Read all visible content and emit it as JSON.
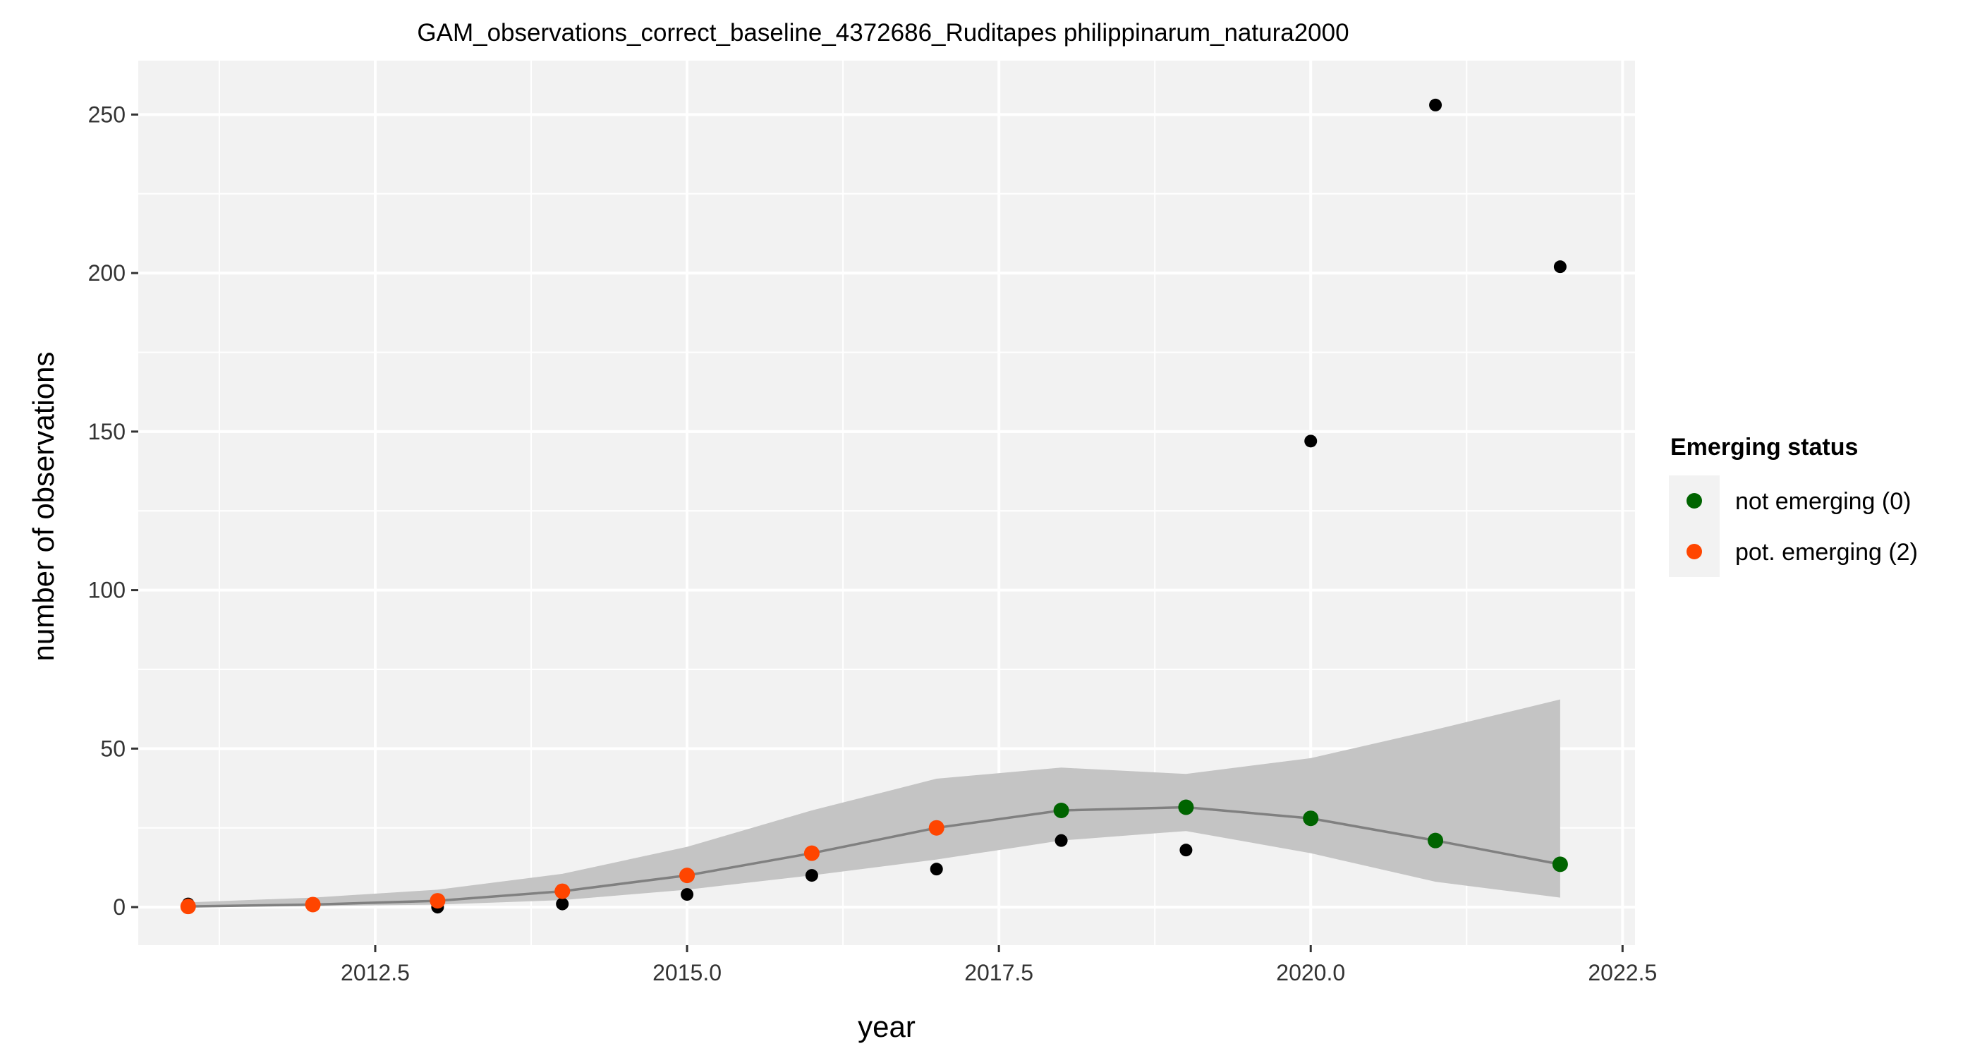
{
  "chart_data": {
    "type": "scatter",
    "title": "GAM_observations_correct_baseline_4372686_Ruditapes philippinarum_natura2000",
    "xlabel": "year",
    "ylabel": "number of observations",
    "xlim": [
      2010.6,
      2022.6
    ],
    "ylim": [
      -12,
      267
    ],
    "x_ticks": [
      2012.5,
      2015.0,
      2017.5,
      2020.0,
      2022.5
    ],
    "x_tick_labels": [
      "2012.5",
      "2015.0",
      "2017.5",
      "2020.0",
      "2022.5"
    ],
    "y_ticks": [
      0,
      50,
      100,
      150,
      200,
      250
    ],
    "y_tick_labels": [
      "0",
      "50",
      "100",
      "150",
      "200",
      "250"
    ],
    "grid": true,
    "legend_position": "right",
    "observed": {
      "x": [
        2011,
        2012,
        2013,
        2014,
        2015,
        2016,
        2017,
        2018,
        2019,
        2020,
        2021,
        2022
      ],
      "values": [
        1,
        1,
        0,
        1,
        4,
        10,
        12,
        21,
        18,
        147,
        253,
        202
      ],
      "color": "#000000"
    },
    "fit": {
      "x": [
        2011,
        2012,
        2013,
        2014,
        2015,
        2016,
        2017,
        2018,
        2019,
        2020,
        2021,
        2022
      ],
      "values": [
        0.2,
        0.8,
        2,
        5,
        10,
        17,
        25,
        30.5,
        31.5,
        28,
        21,
        13.5
      ],
      "lower": [
        0,
        0.3,
        0.8,
        2.2,
        5.5,
        10,
        15,
        21,
        24,
        17,
        8,
        3
      ],
      "upper": [
        1.5,
        3,
        5.5,
        10.5,
        19,
        30.5,
        40.5,
        44,
        42,
        47,
        56,
        65.5
      ],
      "line_color": "#808080",
      "band_color": "#c4c4c4",
      "status": [
        "pot",
        "pot",
        "pot",
        "pot",
        "pot",
        "pot",
        "pot",
        "not",
        "not",
        "not",
        "not",
        "not"
      ]
    },
    "legend": {
      "title": "Emerging status",
      "entries": [
        {
          "key": "not",
          "label": "not emerging (0)",
          "color": "#006400"
        },
        {
          "key": "pot",
          "label": "pot. emerging (2)",
          "color": "#ff4500"
        }
      ]
    },
    "panel_background": "#f2f2f2",
    "grid_color": "#ffffff"
  }
}
